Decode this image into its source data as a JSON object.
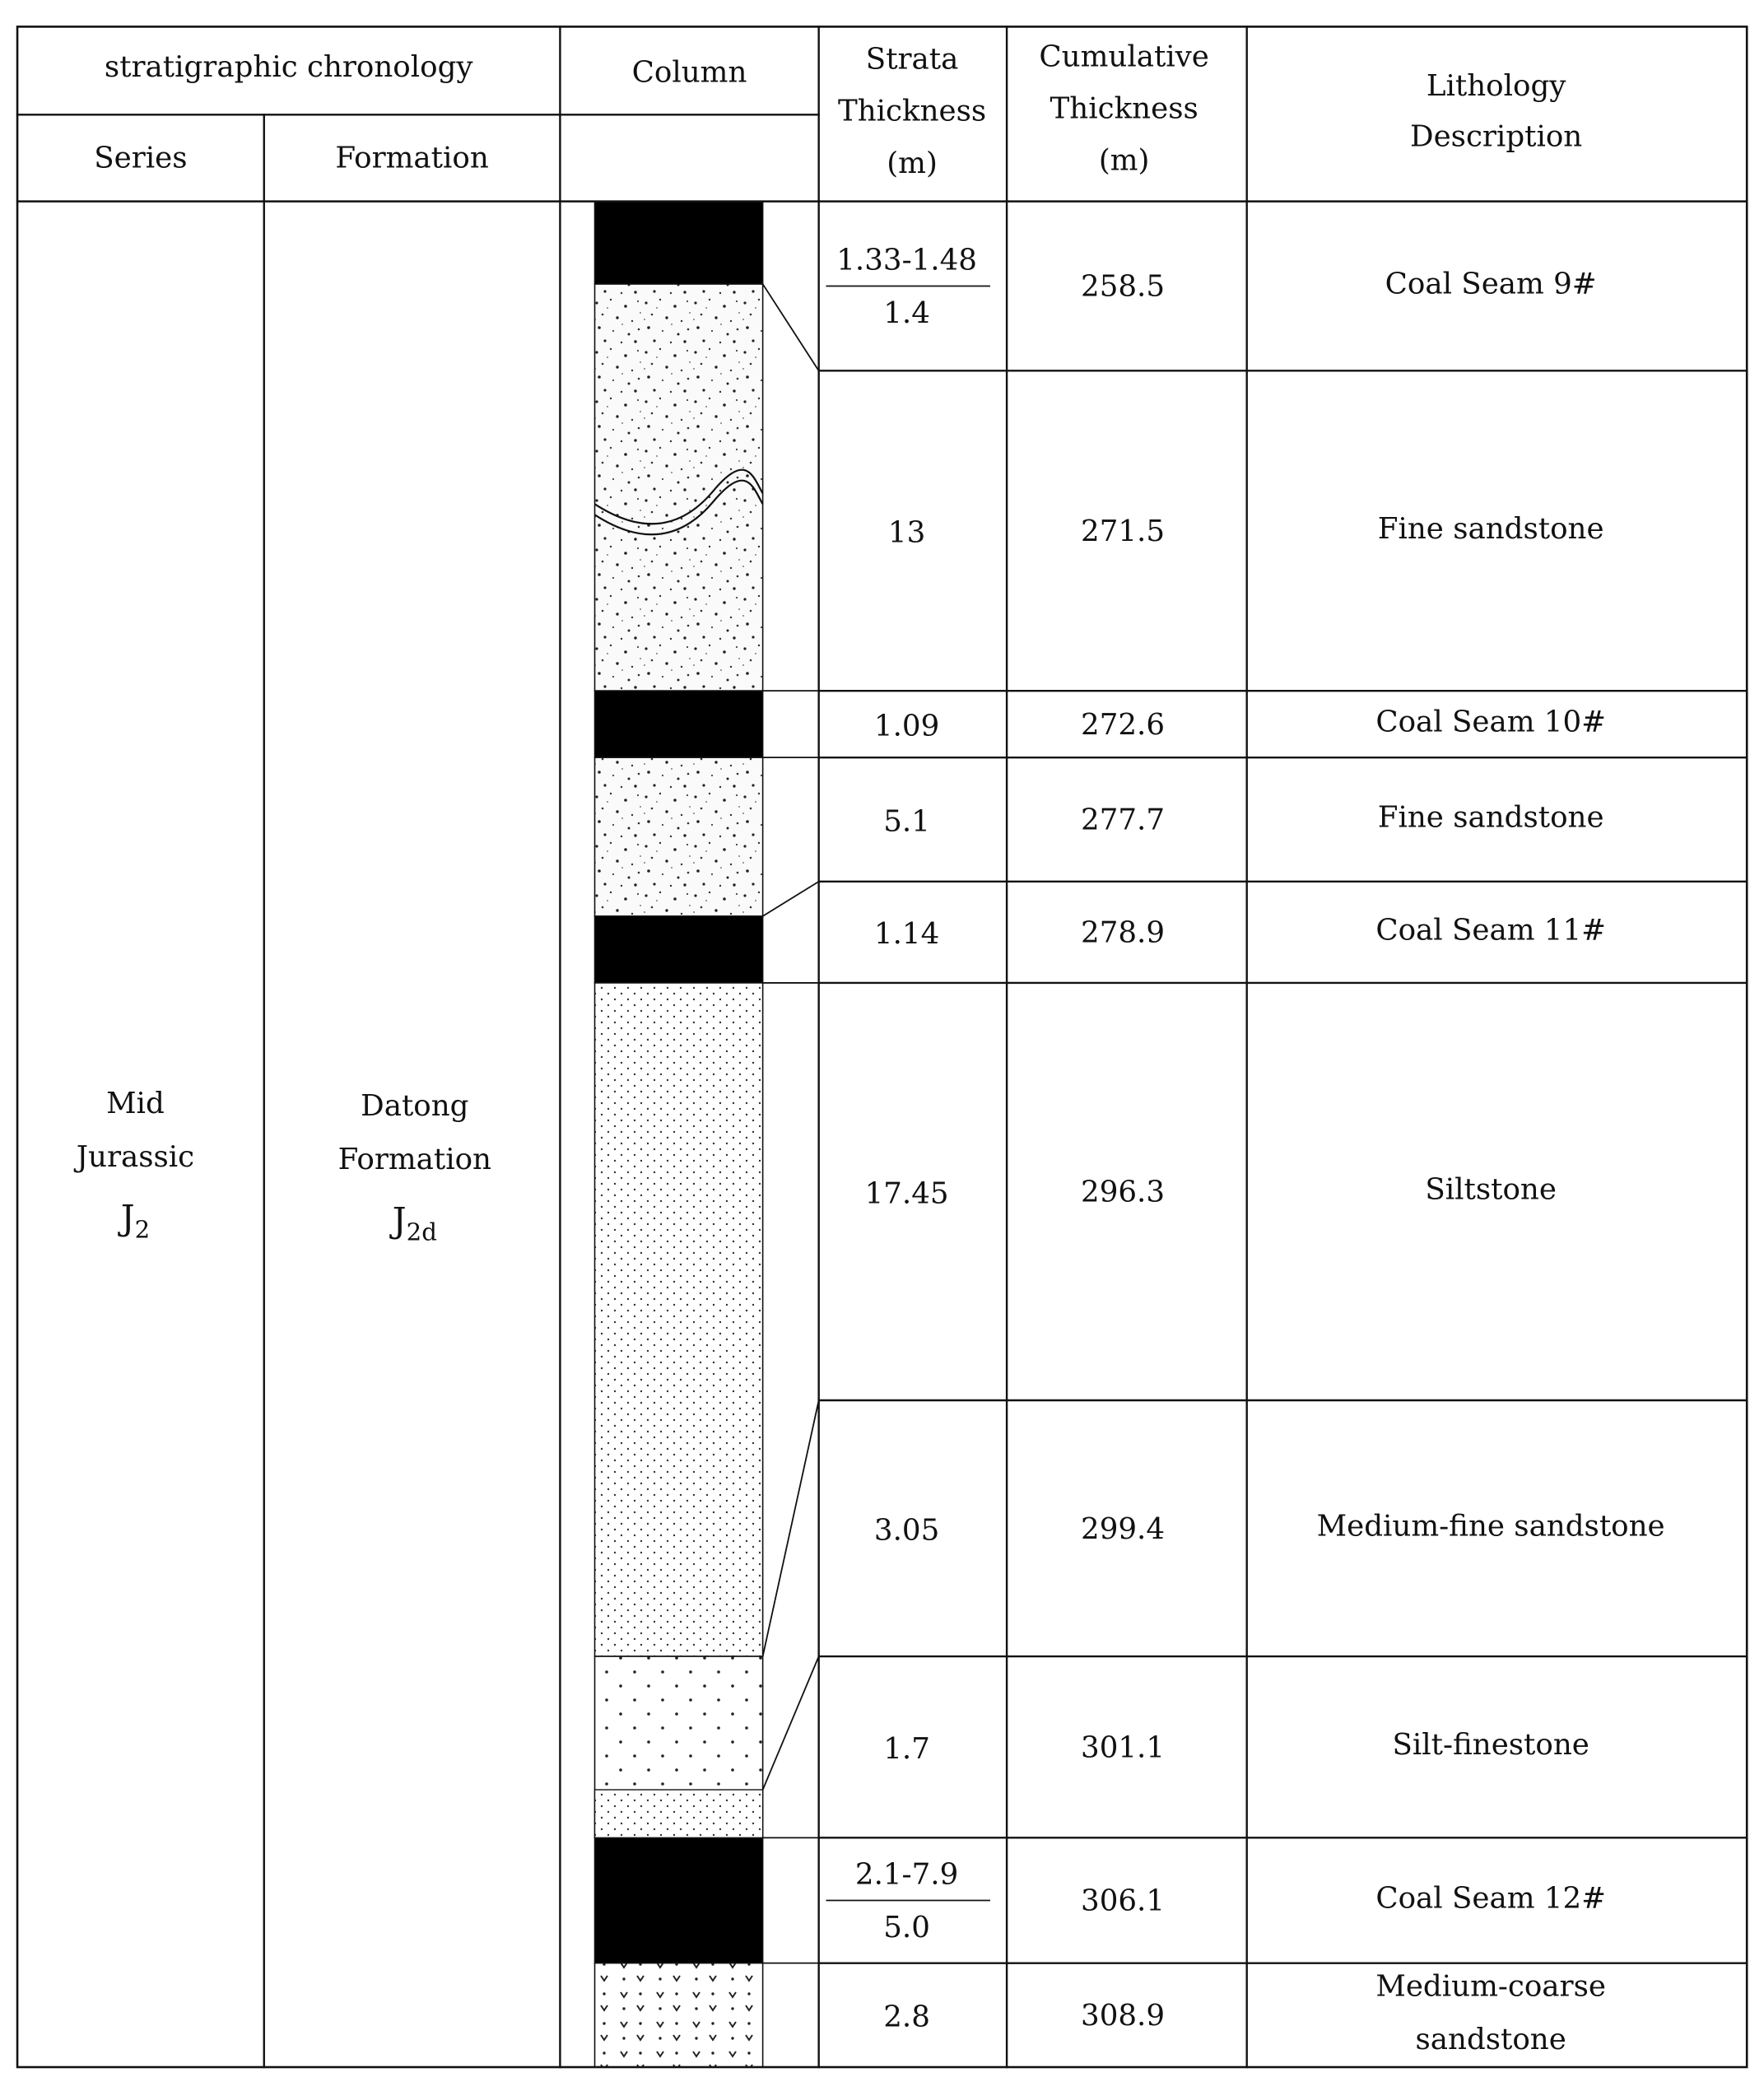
{
  "header": {
    "chronology": "stratigraphic chronology",
    "series": "Series",
    "formation": "Formation",
    "column": "Column",
    "strata_thickness": [
      "Strata",
      "Thickness",
      "(m)"
    ],
    "cumulative_thickness": [
      "Cumulative",
      "Thickness",
      "(m)"
    ],
    "lithology": [
      "Lithology",
      "Description"
    ]
  },
  "series": {
    "lines": [
      "Mid",
      "Jurassic"
    ],
    "symbol": "J",
    "subscript": "2"
  },
  "formation": {
    "lines": [
      "Datong",
      "Formation"
    ],
    "symbol": "J",
    "subscript": "2d"
  },
  "strata": [
    {
      "thickness_range": "1.33-1.48",
      "thickness": "1.4",
      "cumulative": "258.5",
      "lithology": [
        "Coal Seam 9#"
      ],
      "pattern": "coal"
    },
    {
      "thickness": "13",
      "cumulative": "271.5",
      "lithology": [
        "Fine sandstone"
      ],
      "pattern": "fine-sand"
    },
    {
      "thickness": "1.09",
      "cumulative": "272.6",
      "lithology": [
        "Coal Seam 10#"
      ],
      "pattern": "coal"
    },
    {
      "thickness": "5.1",
      "cumulative": "277.7",
      "lithology": [
        "Fine sandstone"
      ],
      "pattern": "fine-sand"
    },
    {
      "thickness": "1.14",
      "cumulative": "278.9",
      "lithology": [
        "Coal Seam 11#"
      ],
      "pattern": "coal"
    },
    {
      "thickness": "17.45",
      "cumulative": "296.3",
      "lithology": [
        "Siltstone"
      ],
      "pattern": "silt"
    },
    {
      "thickness": "3.05",
      "cumulative": "299.4",
      "lithology": [
        "Medium-fine sandstone"
      ],
      "pattern": "silt"
    },
    {
      "thickness": "1.7",
      "cumulative": "301.1",
      "lithology": [
        "Silt-finestone"
      ],
      "pattern": "silt-fine"
    },
    {
      "thickness_range": "2.1-7.9",
      "thickness": "5.0",
      "cumulative": "306.1",
      "lithology": [
        "Coal Seam 12#"
      ],
      "pattern": "coal"
    },
    {
      "thickness": "2.8",
      "cumulative": "308.9",
      "lithology": [
        "Medium-coarse",
        "sandstone"
      ],
      "pattern": "coarse-sand"
    }
  ]
}
